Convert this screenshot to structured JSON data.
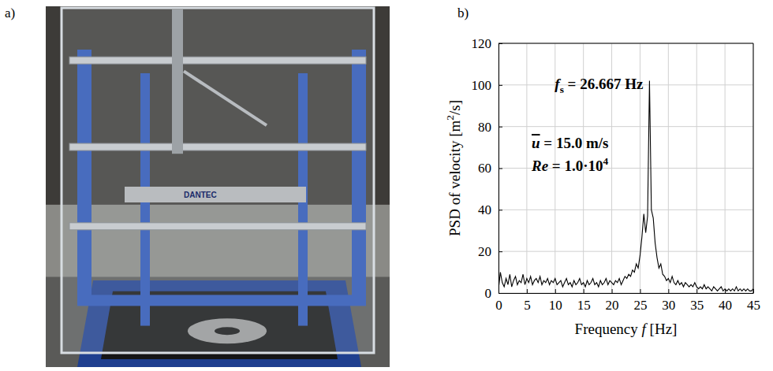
{
  "photo": {
    "panel_label": "a)",
    "device_text": "DANTEC"
  },
  "chart_data": {
    "type": "line",
    "panel_label": "b)",
    "x_label": [
      {
        "text": "Frequency "
      },
      {
        "text": "f",
        "italic": true
      },
      {
        "text": " [Hz]"
      }
    ],
    "y_label": [
      {
        "text": "PSD of velocity [m"
      },
      {
        "text": "2",
        "sup": true
      },
      {
        "text": "/s]"
      }
    ],
    "annotations": [
      {
        "parts": [
          {
            "text": "f",
            "italic": true
          },
          {
            "text": "s",
            "sub": true
          },
          {
            "text": " = 26.667 Hz"
          }
        ]
      },
      {
        "parts": [
          {
            "text": "u",
            "italic": true,
            "overline": true
          },
          {
            "text": " = 15.0 m/s"
          }
        ]
      },
      {
        "parts": [
          {
            "text": "Re",
            "italic": true
          },
          {
            "text": " = 1.0·10"
          },
          {
            "text": "4",
            "sup": true
          }
        ]
      }
    ],
    "x": [
      0,
      0.333,
      0.667,
      1,
      1.333,
      1.667,
      2,
      2.333,
      2.667,
      3,
      3.333,
      3.667,
      4,
      4.333,
      4.667,
      5,
      5.333,
      5.667,
      6,
      6.333,
      6.667,
      7,
      7.333,
      7.667,
      8,
      8.333,
      8.667,
      9,
      9.333,
      9.667,
      10,
      10.333,
      10.667,
      11,
      11.333,
      11.667,
      12,
      12.333,
      12.667,
      13,
      13.333,
      13.667,
      14,
      14.333,
      14.667,
      15,
      15.333,
      15.667,
      16,
      16.333,
      16.667,
      17,
      17.333,
      17.667,
      18,
      18.333,
      18.667,
      19,
      19.333,
      19.667,
      20,
      20.333,
      20.667,
      21,
      21.333,
      21.667,
      22,
      22.333,
      22.667,
      23,
      23.333,
      23.667,
      24,
      24.333,
      24.667,
      25,
      25.333,
      25.667,
      26,
      26.333,
      26.667,
      27,
      27.333,
      27.667,
      28,
      28.333,
      28.667,
      29,
      29.333,
      29.667,
      30,
      30.333,
      30.667,
      31,
      31.333,
      31.667,
      32,
      32.333,
      32.667,
      33,
      33.333,
      33.667,
      34,
      34.333,
      34.667,
      35,
      35.333,
      35.667,
      36,
      36.333,
      36.667,
      37,
      37.333,
      37.667,
      38,
      38.333,
      38.667,
      39,
      39.333,
      39.667,
      40,
      40.333,
      40.667,
      41,
      41.333,
      41.667,
      42,
      42.333,
      42.667,
      43,
      43.333,
      43.667,
      44,
      44.333,
      44.667,
      45
    ],
    "values": [
      2,
      10,
      5,
      3,
      7,
      4,
      9,
      3,
      6,
      8,
      4,
      6,
      5,
      9,
      4,
      7,
      5,
      8,
      4,
      6,
      7,
      5,
      8,
      4,
      6,
      5,
      7,
      4,
      6,
      5,
      7,
      4,
      5,
      6,
      3,
      5,
      7,
      4,
      5,
      3,
      6,
      4,
      5,
      7,
      4,
      5,
      3,
      6,
      4,
      5,
      7,
      4,
      5,
      3,
      6,
      4,
      5,
      7,
      4,
      6,
      5,
      4,
      6,
      5,
      7,
      4,
      6,
      8,
      7,
      9,
      8,
      11,
      10,
      14,
      12,
      18,
      27,
      38,
      29,
      37,
      102,
      40,
      36,
      24,
      17,
      12,
      14,
      9,
      8,
      6,
      7,
      5,
      8,
      5,
      4,
      6,
      4,
      5,
      3,
      5,
      4,
      3,
      4,
      3,
      5,
      3,
      2,
      3,
      2,
      4,
      2,
      3,
      2,
      1,
      3,
      2,
      1,
      2,
      3,
      1,
      2,
      1,
      2,
      1,
      2,
      1,
      3,
      1,
      2,
      1,
      2,
      1,
      2,
      1,
      1,
      2
    ],
    "color": "#000000",
    "xlim": [
      0,
      45
    ],
    "xticks": [
      0,
      5,
      10,
      15,
      20,
      25,
      30,
      35,
      40,
      45
    ],
    "ylim": [
      0,
      120
    ],
    "yticks": [
      0,
      20,
      40,
      60,
      80,
      100,
      120
    ],
    "grid": true
  }
}
